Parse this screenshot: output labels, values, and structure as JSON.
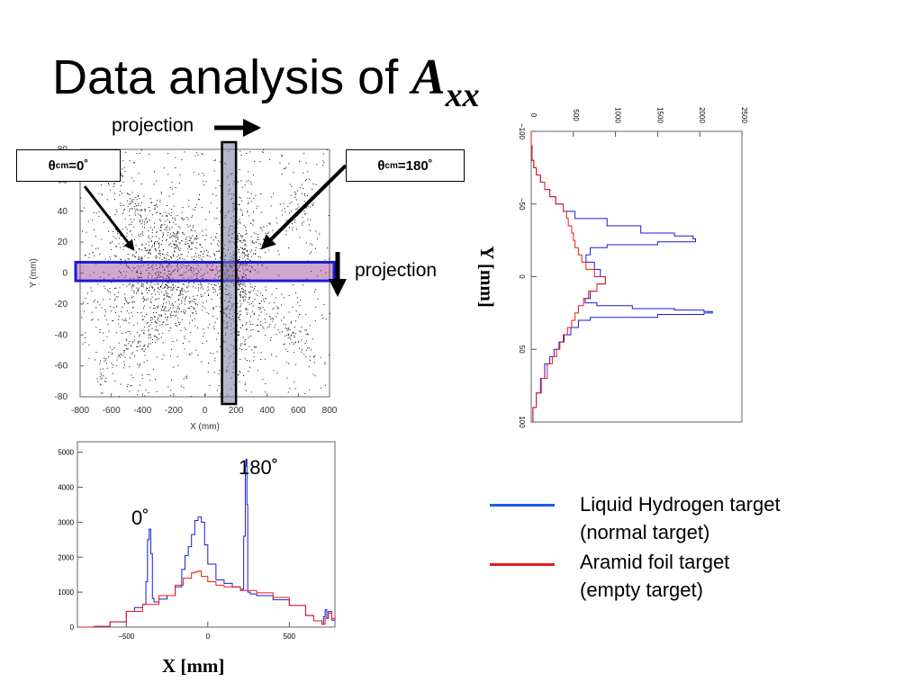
{
  "slide": {
    "title_text": "Data analysis of ",
    "title_symbol": "A",
    "title_subscript": "xx"
  },
  "annotations": {
    "projection_top": "projection",
    "projection_right": "projection",
    "theta_left_main": "θ",
    "theta_left_sub": "cm",
    "theta_left_value": "=0˚",
    "theta_right_main": "θ",
    "theta_right_sub": "cm",
    "theta_right_value": "=180˚",
    "peak_0": "0˚",
    "peak_180": "180˚",
    "x_axis_big": "X [mm]",
    "y_axis_big": "Y [mm]"
  },
  "legend": [
    {
      "label_line1": "Liquid Hydrogen target",
      "label_line2": "(normal target)",
      "color": "#1a5fe6"
    },
    {
      "label_line1": "Aramid foil target",
      "label_line2": "(empty target)",
      "color": "#e61a1a"
    }
  ],
  "chart_data": [
    {
      "type": "scatter",
      "xlabel": "X (mm)",
      "ylabel": "Y (mm)",
      "xlim": [
        -800,
        800
      ],
      "ylim": [
        -80,
        80
      ],
      "xticks": [
        -800,
        -600,
        -400,
        -200,
        0,
        200,
        400,
        600,
        800
      ],
      "yticks": [
        -80,
        -60,
        -40,
        -20,
        0,
        20,
        40,
        60,
        80
      ],
      "point_color": "#000000",
      "selection_bands": [
        {
          "orientation": "horizontal",
          "y_range": [
            -5,
            7
          ],
          "color": "#1a1ad6"
        },
        {
          "orientation": "vertical",
          "x_range": [
            110,
            200
          ],
          "color": "#000000"
        }
      ]
    },
    {
      "type": "line",
      "xlabel": "X [mm]",
      "xlim": [
        -800,
        780
      ],
      "ylim": [
        0,
        5300
      ],
      "xticks": [
        -500,
        0,
        500
      ],
      "yticks": [
        0,
        1000,
        2000,
        3000,
        4000,
        5000
      ],
      "series": [
        {
          "color": "#1a1ad6",
          "x": [
            -780,
            -700,
            -600,
            -500,
            -450,
            -400,
            -380,
            -370,
            -360,
            -350,
            -340,
            -330,
            -300,
            -250,
            -200,
            -160,
            -140,
            -120,
            -100,
            -80,
            -60,
            -40,
            -20,
            0,
            50,
            100,
            150,
            200,
            220,
            230,
            235,
            240,
            245,
            250,
            260,
            300,
            400,
            500,
            600,
            650,
            700,
            710,
            720,
            730,
            740,
            760,
            780
          ],
          "y": [
            0,
            20,
            150,
            450,
            560,
            650,
            1300,
            2500,
            2800,
            2100,
            820,
            720,
            800,
            900,
            1150,
            1650,
            2050,
            2300,
            2650,
            3050,
            3150,
            3000,
            2350,
            1800,
            1350,
            1250,
            1150,
            1080,
            2600,
            4600,
            4800,
            3500,
            1000,
            1000,
            950,
            900,
            780,
            620,
            330,
            180,
            80,
            300,
            500,
            250,
            450,
            200,
            300
          ]
        },
        {
          "color": "#e61a1a",
          "x": [
            -780,
            -700,
            -600,
            -500,
            -400,
            -300,
            -200,
            -150,
            -100,
            -80,
            -60,
            -40,
            0,
            50,
            100,
            200,
            300,
            400,
            500,
            600,
            650,
            700,
            720,
            740,
            760,
            780
          ],
          "y": [
            0,
            20,
            150,
            450,
            650,
            900,
            1200,
            1400,
            1550,
            1580,
            1600,
            1450,
            1300,
            1200,
            1150,
            1050,
            980,
            850,
            620,
            330,
            180,
            80,
            250,
            400,
            250,
            350
          ]
        }
      ]
    },
    {
      "type": "line",
      "orientation": "rotated",
      "xlabel": "Y [mm]",
      "xlim": [
        -100,
        100
      ],
      "ylim": [
        0,
        2500
      ],
      "xticks": [
        -100,
        -50,
        0,
        50,
        100
      ],
      "yticks": [
        0,
        500,
        1000,
        1500,
        2000,
        2500
      ],
      "series": [
        {
          "color": "#1a1ad6",
          "x": [
            -100,
            -90,
            -80,
            -75,
            -70,
            -65,
            -60,
            -55,
            -50,
            -45,
            -40,
            -35,
            -30,
            -28,
            -26,
            -24,
            -22,
            -20,
            -15,
            -10,
            -5,
            0,
            5,
            10,
            15,
            18,
            20,
            22,
            23,
            24,
            25,
            26,
            28,
            30,
            35,
            40,
            45,
            50,
            55,
            60,
            70,
            80,
            90,
            100
          ],
          "y": [
            0,
            10,
            30,
            60,
            110,
            160,
            220,
            290,
            380,
            520,
            900,
            1300,
            1700,
            1920,
            1950,
            1500,
            900,
            700,
            650,
            750,
            820,
            880,
            780,
            700,
            640,
            780,
            1200,
            1700,
            2050,
            2150,
            2050,
            1500,
            700,
            560,
            470,
            390,
            330,
            270,
            220,
            160,
            110,
            60,
            20,
            0
          ]
        },
        {
          "color": "#e61a1a",
          "x": [
            -100,
            -90,
            -80,
            -75,
            -70,
            -65,
            -60,
            -55,
            -50,
            -45,
            -40,
            -35,
            -30,
            -25,
            -20,
            -15,
            -10,
            -5,
            0,
            5,
            10,
            15,
            20,
            25,
            30,
            35,
            40,
            45,
            50,
            55,
            60,
            70,
            80,
            90,
            100
          ],
          "y": [
            0,
            10,
            30,
            60,
            110,
            160,
            220,
            290,
            380,
            420,
            440,
            480,
            500,
            520,
            560,
            600,
            650,
            750,
            880,
            780,
            680,
            620,
            560,
            520,
            480,
            430,
            380,
            340,
            300,
            250,
            190,
            120,
            60,
            20,
            0
          ]
        }
      ]
    }
  ]
}
